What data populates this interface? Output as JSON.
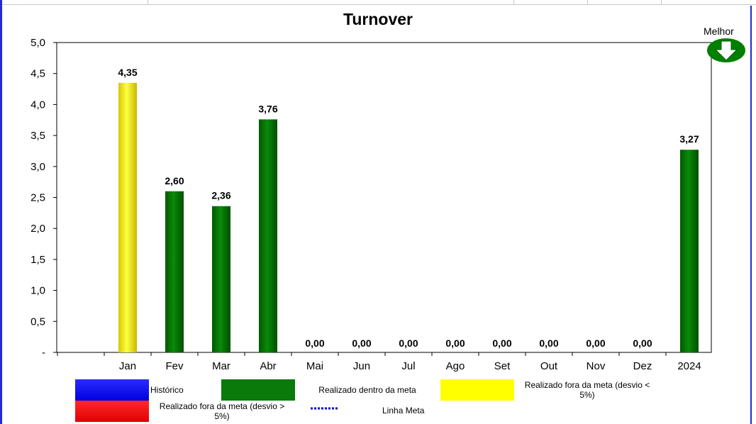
{
  "chart_data": {
    "type": "bar",
    "title": "Turnover",
    "categories": [
      "Jan",
      "Fev",
      "Mar",
      "Abr",
      "Mai",
      "Jun",
      "Jul",
      "Ago",
      "Set",
      "Out",
      "Nov",
      "Dez",
      "2024"
    ],
    "values": [
      4.35,
      2.6,
      2.36,
      3.76,
      0.0,
      0.0,
      0.0,
      0.0,
      0.0,
      0.0,
      0.0,
      0.0,
      3.27
    ],
    "value_labels": [
      "4,35",
      "2,60",
      "2,36",
      "3,76",
      "0,00",
      "0,00",
      "0,00",
      "0,00",
      "0,00",
      "0,00",
      "0,00",
      "0,00",
      "3,27"
    ],
    "bar_status": [
      "yellow",
      "green",
      "green",
      "green",
      "none",
      "none",
      "none",
      "none",
      "none",
      "none",
      "none",
      "none",
      "green"
    ],
    "ylim": [
      0,
      5
    ],
    "yticks": [
      "-",
      "0,5",
      "1,0",
      "1,5",
      "2,0",
      "2,5",
      "3,0",
      "3,5",
      "4,0",
      "4,5",
      "5,0"
    ],
    "grid": false,
    "indicator": {
      "label": "Melhor",
      "direction": "down",
      "icon": "arrow-down-icon"
    }
  },
  "colors": {
    "historico": "#0000ff",
    "dentro_meta": "#007000",
    "fora_meta_menor": "#ffff00",
    "fora_meta_maior": "#ff0000",
    "linha_meta": "#0000cc"
  },
  "legend": {
    "historico": "Histórico",
    "dentro_meta": "Realizado dentro da meta",
    "fora_menor": "Realizado fora da meta (desvio < 5%)",
    "fora_maior": "Realizado fora da meta (desvio > 5%)",
    "linha_meta": "Linha Meta"
  }
}
